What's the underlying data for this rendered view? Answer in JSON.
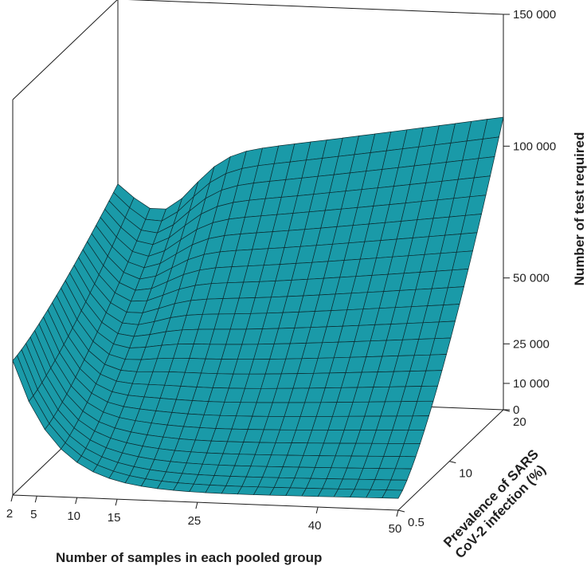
{
  "chart_data": {
    "type": "surface",
    "title": "",
    "xlabel": "Number of samples  in each pooled group",
    "ylabel": "Prevalence of SARS\nCoV-2 infection  (%)",
    "zlabel": "Number of test required",
    "x_ticks": [
      "2",
      "5",
      "10",
      "15",
      "25",
      "40",
      "50"
    ],
    "x_tick_values": [
      2,
      5,
      10,
      15,
      25,
      40,
      50
    ],
    "y_ticks": [
      "0.5",
      "10",
      "20"
    ],
    "y_tick_values": [
      0.5,
      10,
      20
    ],
    "z_ticks": [
      "0",
      "10 000",
      "25 000",
      "50 000",
      "100 000",
      "150 000"
    ],
    "z_tick_values": [
      0,
      10000,
      25000,
      50000,
      100000,
      150000
    ],
    "xlim": [
      2,
      50
    ],
    "ylim": [
      0.5,
      20
    ],
    "zlim": [
      0,
      150000
    ],
    "surface_color": "#1a9aa8",
    "corner_values": [
      {
        "x": 2,
        "y": 0.5,
        "z": 51000
      },
      {
        "x": 2,
        "y": 20,
        "z": 88000
      },
      {
        "x": 50,
        "y": 0.5,
        "z": 4000
      },
      {
        "x": 50,
        "y": 20,
        "z": 111000
      }
    ]
  }
}
